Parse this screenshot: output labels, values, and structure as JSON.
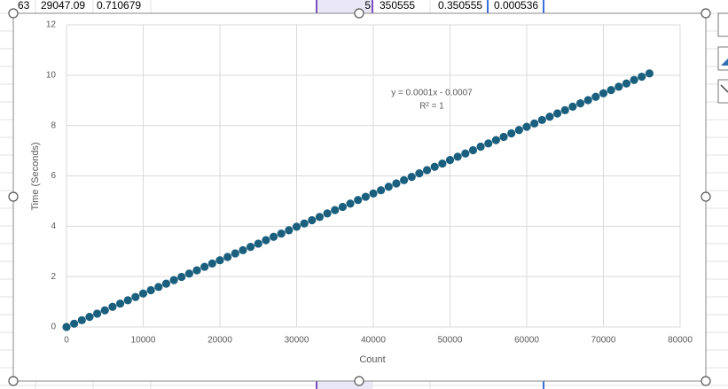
{
  "sheet": {
    "top_row": [
      "63",
      "29047.09",
      "0.710679",
      "5",
      "350555",
      "0.350555",
      "0.000536"
    ]
  },
  "chart_data": {
    "type": "scatter",
    "x_label": "Count",
    "y_label": "Time (Seconds)",
    "annotations": [
      "y = 0.0001x - 0.0007",
      "R² = 1"
    ],
    "color": "#1a5f7e",
    "grid": true,
    "xlim": [
      0,
      80000
    ],
    "xticks": [
      0,
      10000,
      20000,
      30000,
      40000,
      50000,
      60000,
      70000,
      80000
    ],
    "ylim": [
      0,
      12
    ],
    "yticks": [
      0,
      2,
      4,
      6,
      8,
      10,
      12
    ],
    "x": [
      0,
      1000,
      2000,
      3000,
      4000,
      5000,
      6000,
      7000,
      8000,
      9000,
      10000,
      11000,
      12000,
      13000,
      14000,
      15000,
      16000,
      17000,
      18000,
      19000,
      20000,
      21000,
      22000,
      23000,
      24000,
      25000,
      26000,
      27000,
      28000,
      29000,
      30000,
      31000,
      32000,
      33000,
      34000,
      35000,
      36000,
      37000,
      38000,
      39000,
      40000,
      41000,
      42000,
      43000,
      44000,
      45000,
      46000,
      47000,
      48000,
      49000,
      50000,
      51000,
      52000,
      53000,
      54000,
      55000,
      56000,
      57000,
      58000,
      59000,
      60000,
      61000,
      62000,
      63000,
      64000,
      65000,
      66000,
      67000,
      68000,
      69000,
      70000,
      71000,
      72000,
      73000,
      74000,
      75000,
      76000
    ],
    "values": [
      0,
      0.13,
      0.27,
      0.4,
      0.53,
      0.66,
      0.8,
      0.93,
      1.06,
      1.19,
      1.33,
      1.46,
      1.59,
      1.72,
      1.86,
      1.99,
      2.12,
      2.25,
      2.39,
      2.52,
      2.65,
      2.78,
      2.92,
      3.05,
      3.18,
      3.31,
      3.45,
      3.58,
      3.71,
      3.84,
      3.98,
      4.11,
      4.24,
      4.37,
      4.51,
      4.64,
      4.77,
      4.9,
      5.04,
      5.17,
      5.3,
      5.43,
      5.57,
      5.7,
      5.83,
      5.96,
      6.1,
      6.23,
      6.36,
      6.49,
      6.63,
      6.76,
      6.89,
      7.02,
      7.16,
      7.29,
      7.42,
      7.55,
      7.69,
      7.82,
      7.95,
      8.08,
      8.22,
      8.35,
      8.48,
      8.61,
      8.75,
      8.88,
      9.01,
      9.14,
      9.28,
      9.41,
      9.54,
      9.67,
      9.81,
      9.94,
      10.07
    ]
  }
}
